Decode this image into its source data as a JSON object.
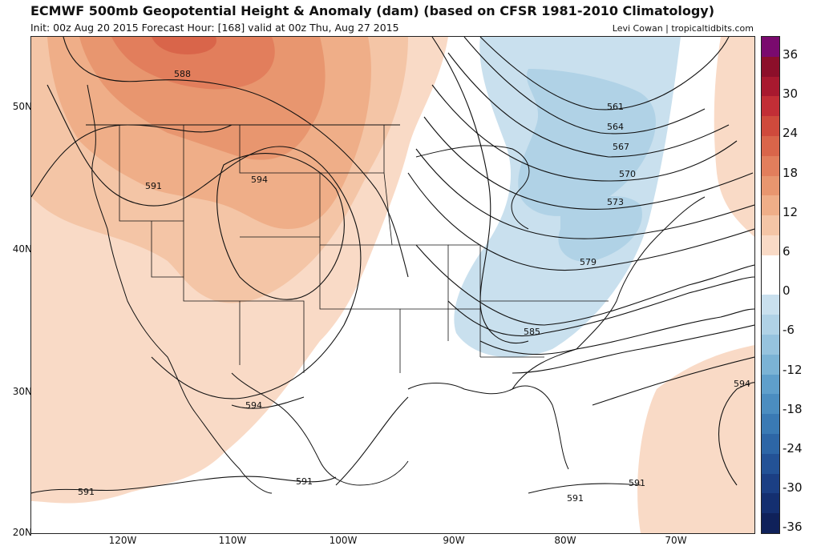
{
  "header": {
    "title": "ECMWF 500mb Geopotential Height & Anomaly (dam) (based on CFSR 1981-2010 Climatology)",
    "subtitle": "Init: 00z Aug 20 2015   Forecast Hour: [168]   valid at 00z Thu, Aug 27 2015",
    "credit": "Levi Cowan | tropicaltidbits.com"
  },
  "axes": {
    "lat_labels": [
      "50N",
      "40N",
      "30N",
      "20N"
    ],
    "lon_labels": [
      "120W",
      "110W",
      "100W",
      "90W",
      "80W",
      "70W"
    ]
  },
  "contours": [
    {
      "label": "588"
    },
    {
      "label": "591"
    },
    {
      "label": "594"
    },
    {
      "label": "561"
    },
    {
      "label": "564"
    },
    {
      "label": "567"
    },
    {
      "label": "570"
    },
    {
      "label": "573"
    },
    {
      "label": "579"
    },
    {
      "label": "585"
    },
    {
      "label": "594"
    },
    {
      "label": "594"
    },
    {
      "label": "591"
    },
    {
      "label": "591"
    },
    {
      "label": "591"
    },
    {
      "label": "591"
    }
  ],
  "colorbar": {
    "labels": [
      "36",
      "30",
      "24",
      "18",
      "12",
      "6",
      "0",
      "-6",
      "-12",
      "-18",
      "-24",
      "-30",
      "-36"
    ],
    "colors": [
      "#7a0a6e",
      "#8c0f2a",
      "#a8192f",
      "#c22e36",
      "#cf4a3c",
      "#d9654a",
      "#e27e5c",
      "#e8966f",
      "#efae88",
      "#f4c5a6",
      "#f9dac6",
      "#ffffff",
      "#ffffff",
      "#c9e0ee",
      "#b0d2e6",
      "#96c3de",
      "#7bb3d5",
      "#5f9fcb",
      "#4b8dc0",
      "#3a7ab4",
      "#2d66a6",
      "#235296",
      "#1b3f84",
      "#142f70",
      "#0f215a"
    ]
  }
}
